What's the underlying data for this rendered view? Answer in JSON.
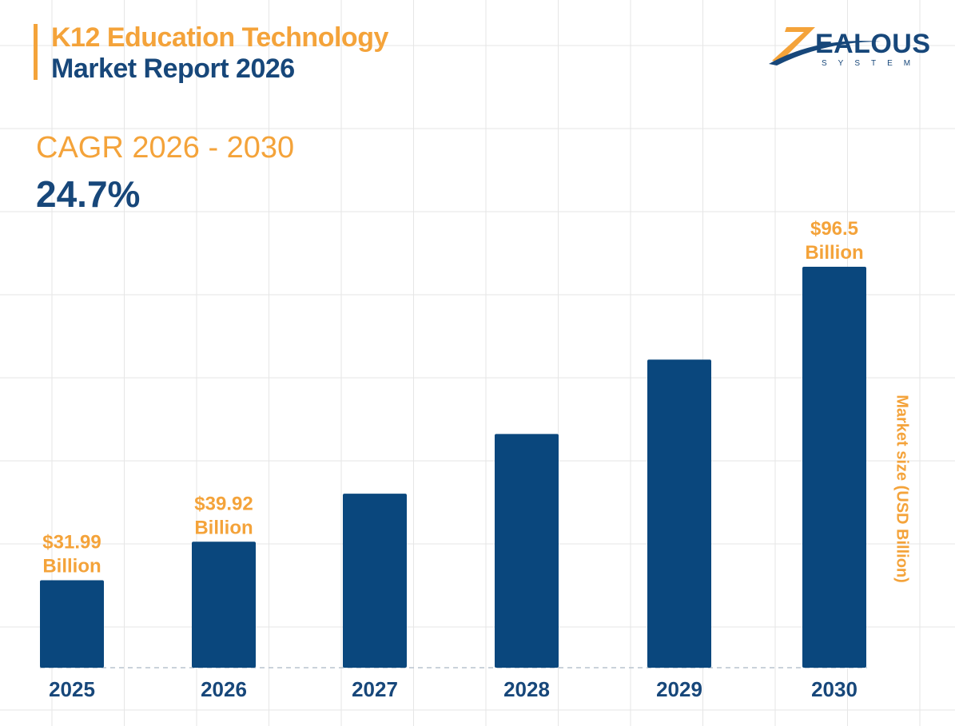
{
  "header": {
    "title_line1": "K12 Education Technology",
    "title_line2": "Market Report 2026"
  },
  "cagr": {
    "label": "CAGR 2026 - 2030",
    "value": "24.7%"
  },
  "logo": {
    "text": "ZEALOUS",
    "subtext": "SYSTEM"
  },
  "colors": {
    "bar": "#0a477d",
    "accent": "#f4a33a",
    "title_blue": "#17477a",
    "grid": "#e6e6e6"
  },
  "chart_data": {
    "type": "bar",
    "categories": [
      "2025",
      "2026",
      "2027",
      "2028",
      "2029",
      "2030"
    ],
    "values": [
      31.99,
      39.92,
      49.8,
      62.1,
      77.4,
      96.5
    ],
    "data_labels": [
      [
        "$31.99",
        "Billion"
      ],
      [
        "$39.92",
        "Billion"
      ],
      null,
      null,
      null,
      [
        "$96.5",
        "Billion"
      ]
    ],
    "ylabel": "Market size (USD Billion)",
    "xlabel": "",
    "grid": true,
    "y_axis_ticks_shown": false
  }
}
